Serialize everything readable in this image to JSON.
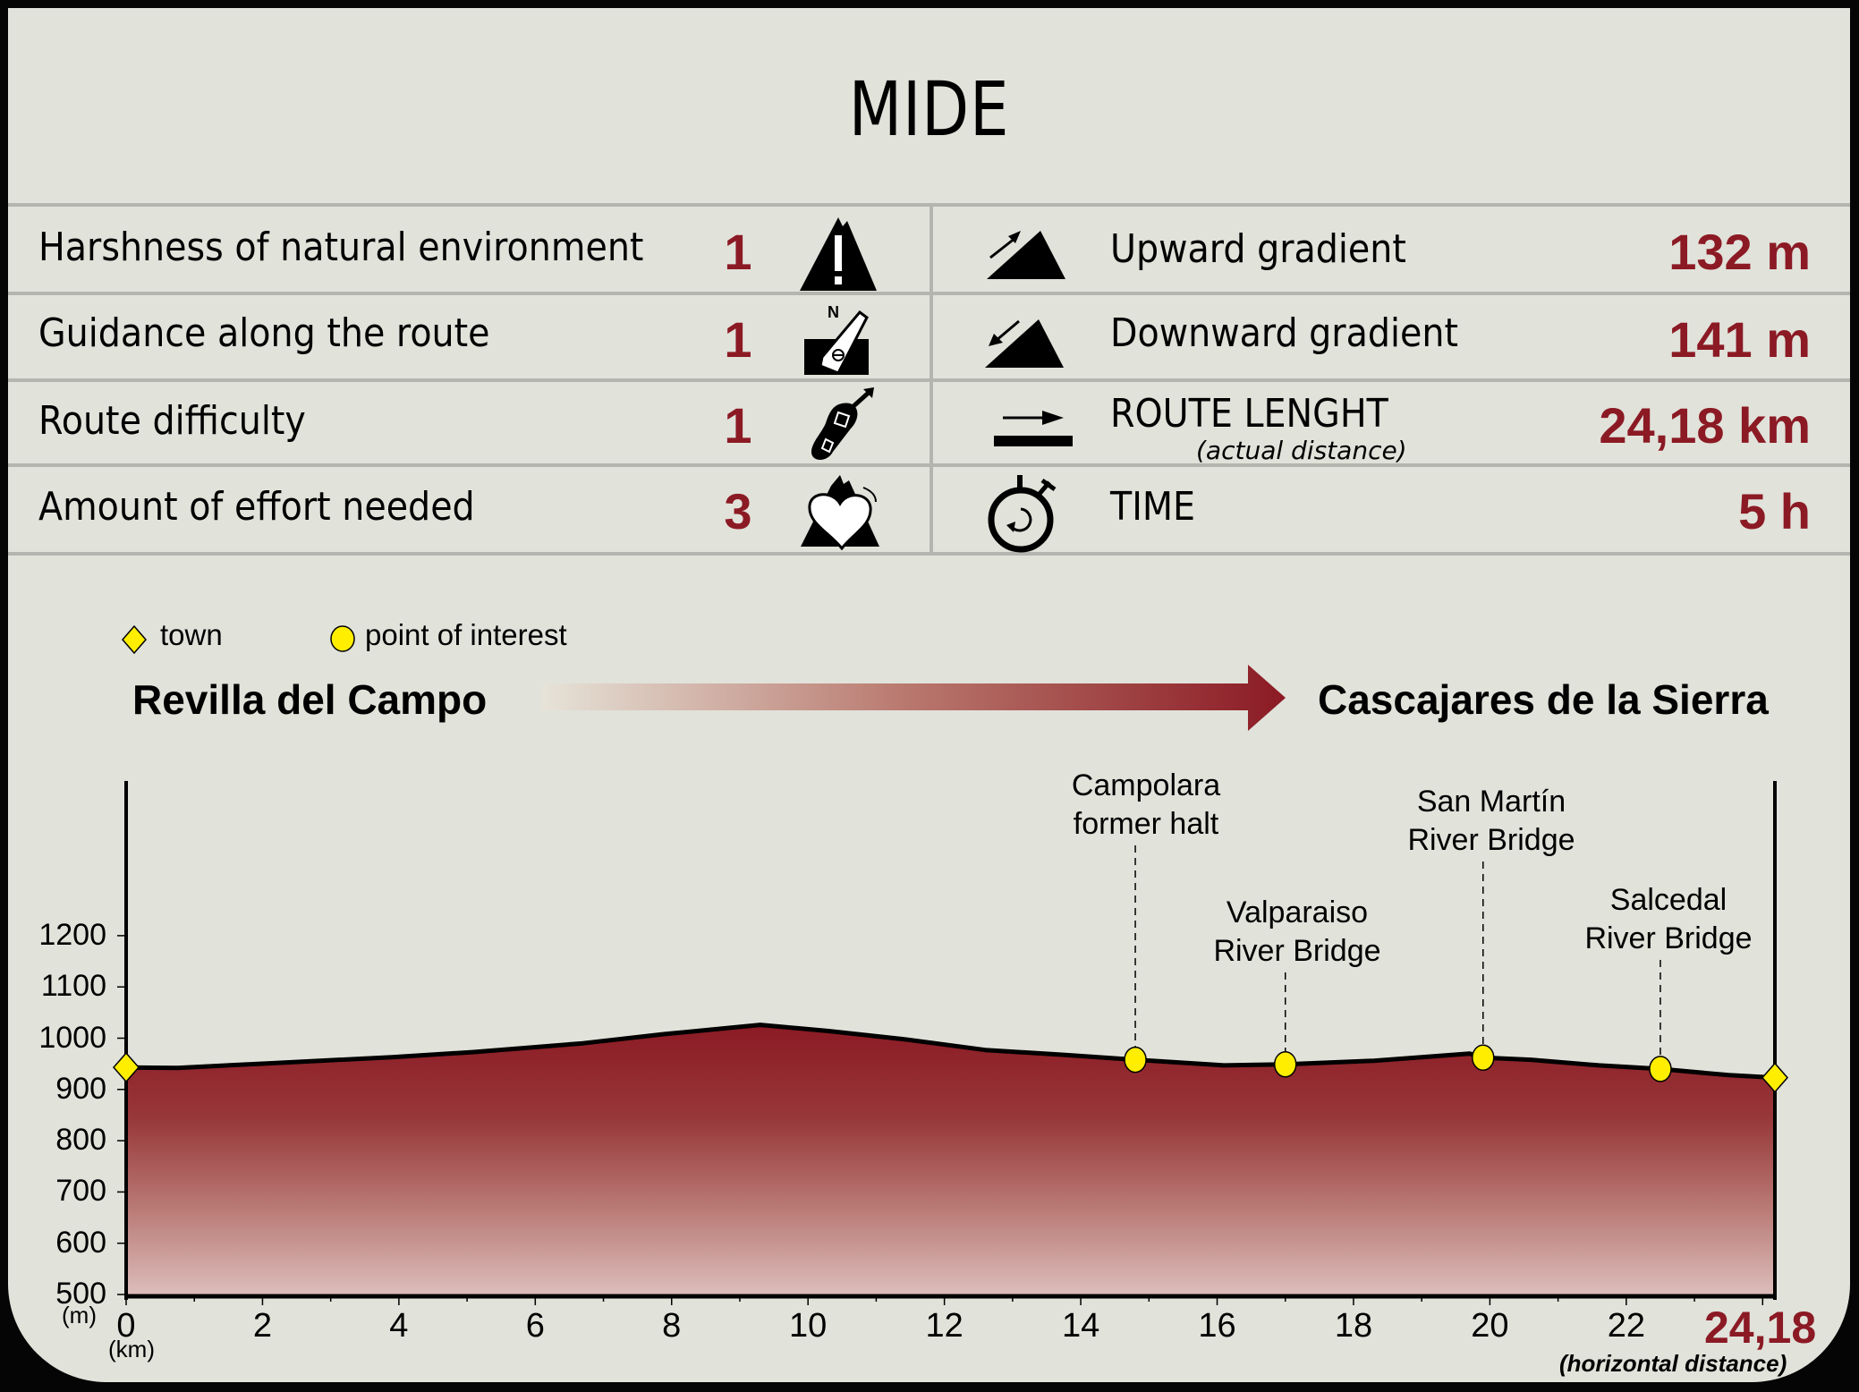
{
  "title": "MIDE",
  "mide_left": [
    {
      "label": "Harshness of natural environment",
      "value": "1",
      "icon": "mountain-warning-icon"
    },
    {
      "label": "Guidance along the route",
      "value": "1",
      "icon": "compass-north-icon"
    },
    {
      "label": "Route difficulty",
      "value": "1",
      "icon": "boot-sole-icon"
    },
    {
      "label": "Amount of effort needed",
      "value": "3",
      "icon": "heart-mountain-icon"
    }
  ],
  "mide_right": [
    {
      "label": "Upward gradient",
      "sub": "",
      "value": "132 m",
      "icon": "upward-gradient-icon"
    },
    {
      "label": "Downward gradient",
      "sub": "",
      "value": "141 m",
      "icon": "downward-gradient-icon"
    },
    {
      "label": "ROUTE LENGHT",
      "sub": "(actual distance)",
      "value": "24,18 km",
      "icon": "route-length-icon"
    },
    {
      "label": "TIME",
      "sub": "",
      "value": "5 h",
      "icon": "stopwatch-icon"
    }
  ],
  "legend": {
    "town": "town",
    "poi": "point of interest"
  },
  "route": {
    "start": "Revilla del Campo",
    "end": "Cascajares de la Sierra"
  },
  "colors": {
    "accent": "#8b1a24",
    "marker": "#ffee00",
    "background": "#e1e2da",
    "divider": "#b4b5ae"
  },
  "chart_data": {
    "type": "area",
    "title": "Elevation profile",
    "xlabel": "(km)",
    "ylabel": "(m)",
    "x_end_label": "24,18",
    "x_end_note": "(horizontal distance)",
    "xlim": [
      0,
      24.18
    ],
    "ylim": [
      500,
      1200
    ],
    "x_ticks": [
      "0",
      "2",
      "4",
      "6",
      "8",
      "10",
      "12",
      "14",
      "16",
      "18",
      "20",
      "22"
    ],
    "y_ticks": [
      "1200",
      "1100",
      "1000",
      "900",
      "800",
      "700",
      "600",
      "500"
    ],
    "grid": false,
    "x": [
      0,
      0.75,
      2.1,
      3.9,
      5.1,
      6.7,
      7.9,
      9.3,
      10.3,
      11.4,
      12.6,
      13.8,
      14.8,
      16.1,
      17.0,
      18.3,
      19.7,
      19.9,
      20.6,
      21.6,
      22.5,
      23.5,
      24.18
    ],
    "y": [
      943,
      942,
      951,
      963,
      973,
      990,
      1008,
      1026,
      1014,
      998,
      977,
      967,
      958,
      947,
      949,
      956,
      970,
      962,
      958,
      947,
      940,
      928,
      923
    ],
    "markers": [
      {
        "type": "town",
        "km": 0,
        "elev": 943,
        "label": "Revilla del Campo"
      },
      {
        "type": "poi",
        "km": 14.8,
        "elev": 958,
        "label": "Campolara former halt",
        "lines": [
          "Campolara",
          "former halt"
        ]
      },
      {
        "type": "poi",
        "km": 17.0,
        "elev": 949,
        "label": "Valparaiso River Bridge",
        "lines": [
          "Valparaiso",
          "River Bridge"
        ]
      },
      {
        "type": "poi",
        "km": 19.9,
        "elev": 962,
        "label": "San Martín River Bridge",
        "lines": [
          "San Martín",
          "River Bridge"
        ]
      },
      {
        "type": "poi",
        "km": 22.5,
        "elev": 940,
        "label": "Salcedal River Bridge",
        "lines": [
          "Salcedal",
          "River Bridge"
        ]
      },
      {
        "type": "town",
        "km": 24.18,
        "elev": 923,
        "label": "Cascajares de la Sierra"
      }
    ]
  }
}
